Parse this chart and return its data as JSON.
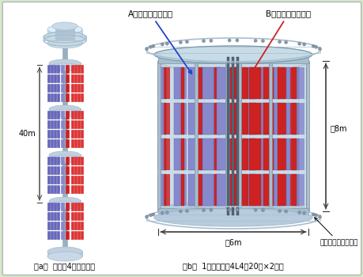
{
  "bg_color": "#d4eac8",
  "panel_bg": "#ffffff",
  "label_a": "A群アンテナ（青）",
  "label_b": "B群アンテナ（赤）",
  "label_40m": "40m",
  "label_8m": "約8m",
  "label_6m": "約6m",
  "label_maintenance": "メンテナンスデッキ",
  "caption_a": "（a）  全体（4ブロック）",
  "caption_b": "（b）  1ブロック（4L4段20面×2群）",
  "color_blue": "#8888cc",
  "color_blue2": "#6666bb",
  "color_red": "#cc2222",
  "color_red2": "#dd3333",
  "color_struct_light": "#c8dce8",
  "color_struct_mid": "#a8bece",
  "color_struct_dark": "#7899aa",
  "color_deck_ring": "#aabbcc"
}
